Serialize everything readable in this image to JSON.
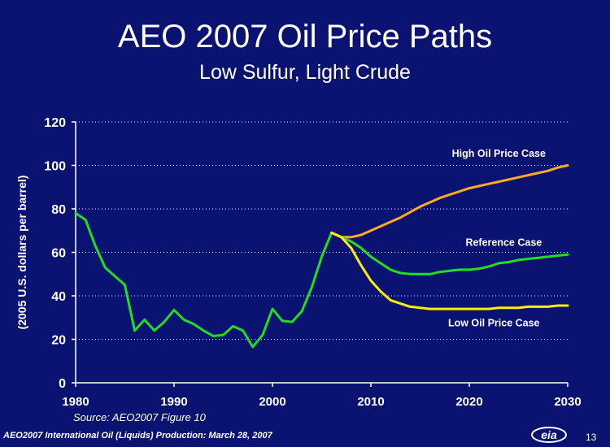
{
  "slide": {
    "title": "AEO 2007 Oil Price Paths",
    "subtitle": "Low Sulfur, Light Crude",
    "source": "Source: AEO2007  Figure 10",
    "footer": "AEO2007 International Oil (Liquids) Production: March 28, 2007",
    "page_number": "13",
    "logo_text": "eia"
  },
  "colors": {
    "background": "#0a1272",
    "history": "#22dd22",
    "reference": "#22dd22",
    "high": "#ffaa22",
    "low": "#ffee00",
    "grid": "#ffffff",
    "text": "#ffffff"
  },
  "chart_data": {
    "type": "line",
    "ylabel": "(2005 U.S. dollars per barrel)",
    "xlabel": "",
    "xlim": [
      1980,
      2030
    ],
    "ylim": [
      0,
      120
    ],
    "xticks": [
      1980,
      1990,
      2000,
      2010,
      2020,
      2030
    ],
    "yticks": [
      0,
      20,
      40,
      60,
      80,
      100,
      120
    ],
    "grid": "horizontal dotted",
    "series": [
      {
        "name": "",
        "color": "#22dd22",
        "x": [
          1980,
          1981,
          1982,
          1983,
          1984,
          1985,
          1986,
          1987,
          1988,
          1989,
          1990,
          1991,
          1992,
          1993,
          1994,
          1995,
          1996,
          1997,
          1998,
          1999,
          2000,
          2001,
          2002,
          2003,
          2004,
          2005,
          2006
        ],
        "y": [
          78,
          75,
          63,
          53,
          49,
          45,
          24,
          29,
          24,
          28,
          33.5,
          29,
          27,
          24,
          21.5,
          22,
          26,
          24,
          16.5,
          22,
          34,
          28.5,
          28,
          33,
          44,
          58,
          69
        ]
      },
      {
        "name": "High Oil Price Case",
        "color": "#ffaa22",
        "x": [
          2006,
          2007,
          2008,
          2009,
          2010,
          2011,
          2012,
          2013,
          2014,
          2015,
          2016,
          2017,
          2018,
          2019,
          2020,
          2021,
          2022,
          2023,
          2024,
          2025,
          2026,
          2027,
          2028,
          2029,
          2030
        ],
        "y": [
          69,
          67,
          67,
          68,
          70,
          72,
          74,
          76,
          78.5,
          81,
          83,
          85,
          86.5,
          88,
          89.5,
          90.5,
          91.5,
          92.5,
          93.5,
          94.5,
          95.5,
          96.5,
          97.5,
          99,
          100
        ]
      },
      {
        "name": "Reference Case",
        "color": "#22dd22",
        "x": [
          2006,
          2007,
          2008,
          2009,
          2010,
          2011,
          2012,
          2013,
          2014,
          2015,
          2016,
          2017,
          2018,
          2019,
          2020,
          2021,
          2022,
          2023,
          2024,
          2025,
          2026,
          2027,
          2028,
          2029,
          2030
        ],
        "y": [
          69,
          67,
          65,
          62,
          58,
          55,
          52,
          50.5,
          50,
          50,
          50,
          51,
          51.5,
          52,
          52,
          52.5,
          53.5,
          55,
          55.5,
          56.5,
          57,
          57.5,
          58,
          58.5,
          59
        ]
      },
      {
        "name": "Low Oil Price Case",
        "color": "#ffee00",
        "x": [
          2006,
          2007,
          2008,
          2009,
          2010,
          2011,
          2012,
          2013,
          2014,
          2015,
          2016,
          2017,
          2018,
          2019,
          2020,
          2021,
          2022,
          2023,
          2024,
          2025,
          2026,
          2027,
          2028,
          2029,
          2030
        ],
        "y": [
          69,
          67,
          62,
          54,
          47,
          42,
          38,
          36.5,
          35,
          34.5,
          34,
          34,
          34,
          34,
          34,
          34,
          34,
          34.5,
          34.5,
          34.5,
          35,
          35,
          35,
          35.5,
          35.5
        ]
      }
    ],
    "annotations": [
      {
        "text": "High Oil Price Case",
        "x": 2023,
        "y": 104
      },
      {
        "text": "Reference Case",
        "x": 2023.5,
        "y": 63
      },
      {
        "text": "Low Oil Price Case",
        "x": 2022.5,
        "y": 26
      }
    ]
  }
}
